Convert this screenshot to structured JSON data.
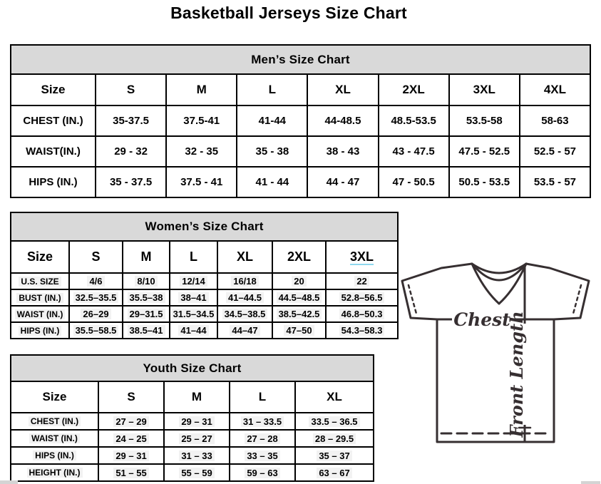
{
  "page_title": "Basketball Jerseys Size Chart",
  "colors": {
    "table_band_background": "#d9d9d9",
    "table_border": "#000000",
    "cell_highlight": "#f2f2f2",
    "diagram_stroke": "#362f31",
    "womens_3xl_underline": "#8fd8ee"
  },
  "tables": {
    "men": {
      "title": "Men’s Size Chart",
      "columns": [
        "Size",
        "S",
        "M",
        "L",
        "XL",
        "2XL",
        "3XL",
        "4XL"
      ],
      "rows": [
        {
          "label": "CHEST (IN.)",
          "values": [
            "35-37.5",
            "37.5-41",
            "41-44",
            "44-48.5",
            "48.5-53.5",
            "53.5-58",
            "58-63"
          ]
        },
        {
          "label": "WAIST(IN.)",
          "values": [
            "29 - 32",
            "32 - 35",
            "35 - 38",
            "38 - 43",
            "43 - 47.5",
            "47.5 - 52.5",
            "52.5 - 57"
          ]
        },
        {
          "label": "HIPS (IN.)",
          "values": [
            "35 - 37.5",
            "37.5 - 41",
            "41 - 44",
            "44 - 47",
            "47 - 50.5",
            "50.5 - 53.5",
            "53.5 - 57"
          ]
        }
      ]
    },
    "women": {
      "title": "Women’s Size Chart",
      "columns": [
        "Size",
        "S",
        "M",
        "L",
        "XL",
        "2XL",
        "3XL"
      ],
      "rows": [
        {
          "label": "U.S. SIZE",
          "values": [
            "4/6",
            "8/10",
            "12/14",
            "16/18",
            "20",
            "22"
          ]
        },
        {
          "label": "BUST (IN.)",
          "values": [
            "32.5–35.5",
            "35.5–38",
            "38–41",
            "41–44.5",
            "44.5–48.5",
            "52.8–56.5"
          ]
        },
        {
          "label": "WAIST (IN.)",
          "values": [
            "26–29",
            "29–31.5",
            "31.5–34.5",
            "34.5–38.5",
            "38.5–42.5",
            "46.8–50.3"
          ]
        },
        {
          "label": "HIPS (IN.)",
          "values": [
            "35.5–58.5",
            "38.5–41",
            "41–44",
            "44–47",
            "47–50",
            "54.3–58.3"
          ]
        }
      ]
    },
    "youth": {
      "title": "Youth Size Chart",
      "columns": [
        "Size",
        "S",
        "M",
        "L",
        "XL"
      ],
      "rows": [
        {
          "label": "CHEST (IN.)",
          "values": [
            "27 – 29",
            "29 – 31",
            "31 – 33.5",
            "33.5 – 36.5"
          ]
        },
        {
          "label": "WAIST (IN.)",
          "values": [
            "24 – 25",
            "25 – 27",
            "27 – 28",
            "28 – 29.5"
          ]
        },
        {
          "label": "HIPS (IN.)",
          "values": [
            "29 – 31",
            "31 – 33",
            "33 – 35",
            "35 – 37"
          ]
        },
        {
          "label": "HEIGHT (IN.)",
          "values": [
            "51 – 55",
            "55 – 59",
            "59 – 63",
            "63 – 67"
          ]
        }
      ]
    }
  },
  "diagram": {
    "chest_label": "Chest",
    "front_length_label": "Front Length"
  }
}
